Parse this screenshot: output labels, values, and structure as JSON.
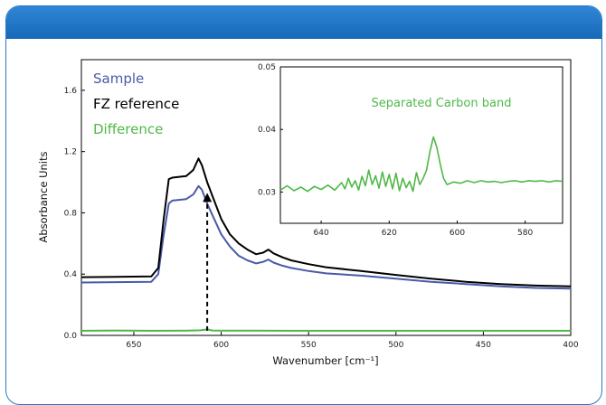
{
  "colors": {
    "header": "#1a6fbf",
    "sample": "#4a5aa8",
    "reference": "#000000",
    "difference": "#4fb848",
    "arrow": "#000000"
  },
  "chart_data": [
    {
      "type": "line",
      "title": "",
      "xlabel": "Wavenumber [cm⁻¹]",
      "ylabel": "Absorbance Units",
      "xlim": [
        680,
        400
      ],
      "ylim": [
        0.0,
        1.8
      ],
      "x_reversed": true,
      "xticks": [
        "650",
        "600",
        "550",
        "500",
        "450",
        "400"
      ],
      "yticks": [
        "0.0",
        "0.4",
        "0.8",
        "1.2",
        "1.6"
      ],
      "legend": [
        "Sample",
        "FZ reference",
        "Difference"
      ],
      "legend_position": "top-left",
      "grid": false,
      "series": [
        {
          "name": "Sample",
          "x": [
            680,
            640,
            636,
            633,
            630,
            628,
            620,
            616,
            613,
            611,
            608,
            604,
            600,
            595,
            590,
            585,
            580,
            576,
            573,
            570,
            565,
            560,
            550,
            540,
            520,
            500,
            480,
            460,
            440,
            420,
            400
          ],
          "y": [
            0.345,
            0.35,
            0.4,
            0.65,
            0.86,
            0.88,
            0.89,
            0.92,
            0.975,
            0.95,
            0.86,
            0.76,
            0.66,
            0.58,
            0.52,
            0.49,
            0.47,
            0.48,
            0.495,
            0.475,
            0.455,
            0.44,
            0.42,
            0.405,
            0.39,
            0.37,
            0.35,
            0.335,
            0.32,
            0.31,
            0.305
          ]
        },
        {
          "name": "FZ reference",
          "x": [
            680,
            640,
            636,
            633,
            630,
            628,
            620,
            616,
            613,
            611,
            608,
            604,
            600,
            595,
            590,
            585,
            580,
            576,
            573,
            570,
            565,
            560,
            550,
            540,
            520,
            500,
            480,
            460,
            440,
            420,
            400
          ],
          "y": [
            0.38,
            0.385,
            0.44,
            0.75,
            1.02,
            1.03,
            1.04,
            1.08,
            1.155,
            1.11,
            1.0,
            0.88,
            0.76,
            0.66,
            0.6,
            0.56,
            0.53,
            0.54,
            0.56,
            0.535,
            0.51,
            0.49,
            0.465,
            0.445,
            0.42,
            0.395,
            0.37,
            0.35,
            0.335,
            0.325,
            0.32
          ]
        },
        {
          "name": "Difference",
          "x": [
            680,
            660,
            640,
            620,
            612,
            608,
            605,
            600,
            580,
            560,
            540,
            520,
            500,
            480,
            460,
            440,
            420,
            400
          ],
          "y": [
            0.03,
            0.032,
            0.03,
            0.031,
            0.033,
            0.039,
            0.032,
            0.031,
            0.031,
            0.03,
            0.03,
            0.03,
            0.03,
            0.03,
            0.03,
            0.03,
            0.03,
            0.03
          ]
        }
      ],
      "annotations": [
        {
          "type": "arrow",
          "x": 608,
          "y_from": 0.03,
          "y_to": 0.93
        }
      ]
    },
    {
      "type": "line",
      "title": "Separated Carbon band",
      "xlim": [
        652,
        569
      ],
      "ylim": [
        0.025,
        0.05
      ],
      "x_reversed": true,
      "xticks": [
        "640",
        "620",
        "600",
        "580"
      ],
      "yticks": [
        "0.03",
        "0.04",
        "0.05"
      ],
      "series": [
        {
          "name": "Separated Carbon band",
          "x": [
            652,
            650,
            648,
            646,
            644,
            642,
            640,
            638,
            636,
            634,
            633,
            632,
            631,
            630,
            629,
            628,
            627,
            626,
            625,
            624,
            623,
            622,
            621,
            620,
            619,
            618,
            617,
            616,
            615,
            614,
            613,
            612,
            611,
            610,
            609,
            608,
            607,
            606,
            605,
            604,
            603,
            601,
            599,
            597,
            595,
            593,
            591,
            589,
            587,
            585,
            583,
            581,
            579,
            577,
            575,
            573,
            571,
            569
          ],
          "y": [
            0.0303,
            0.031,
            0.0302,
            0.0308,
            0.0301,
            0.0309,
            0.0304,
            0.0311,
            0.0303,
            0.0315,
            0.0305,
            0.0322,
            0.0308,
            0.0318,
            0.0303,
            0.0325,
            0.031,
            0.0335,
            0.0312,
            0.0326,
            0.0306,
            0.0332,
            0.0309,
            0.0328,
            0.0305,
            0.033,
            0.0302,
            0.0322,
            0.0307,
            0.0317,
            0.0301,
            0.0331,
            0.0312,
            0.0322,
            0.0335,
            0.0365,
            0.0388,
            0.0372,
            0.0345,
            0.0322,
            0.0312,
            0.0316,
            0.0314,
            0.0318,
            0.0315,
            0.0318,
            0.0316,
            0.0317,
            0.0315,
            0.0317,
            0.0318,
            0.0316,
            0.0318,
            0.0317,
            0.0318,
            0.0316,
            0.0318,
            0.0317
          ]
        }
      ]
    }
  ]
}
